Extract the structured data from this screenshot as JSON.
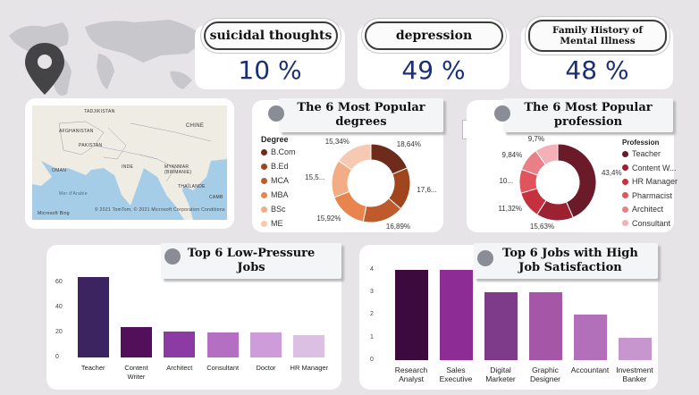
{
  "kpis": [
    {
      "label": "suicidal thoughts",
      "value": "10 %"
    },
    {
      "label": "depression",
      "value": "49 %"
    },
    {
      "label": "Family History of\nMental Illness",
      "value": "48 %"
    }
  ],
  "map": {
    "labels": {
      "tajikistan": "TADJIKISTAN",
      "afghanistan": "AFGHANISTAN",
      "pakistan": "PAKISTAN",
      "chine": "CHINE",
      "inde": "INDE",
      "oman": "OMAN",
      "myanmar": "MYANMAR\n(BIRMANIE)",
      "thailande": "THAÏLANDE",
      "mer": "Mer d'Arabie",
      "cambodge": "CAMB"
    },
    "attribution": "Microsoft Bing",
    "copyright": "© 2021 TomTom, © 2021 Microsoft Corporation  Conditions"
  },
  "degrees": {
    "title": "The 6 Most Popular degrees",
    "legend_title": "Degree",
    "items": [
      {
        "name": "B.Com",
        "pct": 18.64,
        "label": "18,64%",
        "color": "#6e2b1c"
      },
      {
        "name": "B.Ed",
        "pct": 17.6,
        "label": "17,6...",
        "color": "#a0451c"
      },
      {
        "name": "MCA",
        "pct": 16.89,
        "label": "16,89%",
        "color": "#bf5a2c"
      },
      {
        "name": "MBA",
        "pct": 15.92,
        "label": "15,92%",
        "color": "#e8854e"
      },
      {
        "name": "BSc",
        "pct": 15.5,
        "label": "15,5...",
        "color": "#f2ad86"
      },
      {
        "name": "ME",
        "pct": 15.34,
        "label": "15,34%",
        "color": "#f6c9b2"
      }
    ]
  },
  "profession": {
    "title": "The 6 Most Popular profession",
    "legend_title": "Profession",
    "items": [
      {
        "name": "Teacher",
        "pct": 43.4,
        "label": "43,4%",
        "color": "#6b1a2a"
      },
      {
        "name": "Content W...",
        "pct": 15.63,
        "label": "15,63%",
        "color": "#9c2233"
      },
      {
        "name": "HR Manager",
        "pct": 11.32,
        "label": "11,32%",
        "color": "#c6313f"
      },
      {
        "name": "Pharmacist",
        "pct": 10.0,
        "label": "10...",
        "color": "#e0545e"
      },
      {
        "name": "Architect",
        "pct": 9.84,
        "label": "9,84%",
        "color": "#ea7f88"
      },
      {
        "name": "Consultant",
        "pct": 9.7,
        "label": "9,7%",
        "color": "#f3b1b7"
      }
    ]
  },
  "toolbar": {
    "filter_icon": "filter-icon",
    "more_icon": "more-icon"
  },
  "chart_data": [
    {
      "type": "bar",
      "title": "Top 6 Low-Pressure Jobs",
      "categories": [
        "Teacher",
        "Content\nWriter",
        "Architect",
        "Consultant",
        "Doctor",
        "HR Manager"
      ],
      "values": [
        64,
        24,
        21,
        20,
        20,
        18
      ],
      "colors": [
        "#3c2460",
        "#520f5a",
        "#8c3aa4",
        "#b46fc2",
        "#ce9cd8",
        "#dcc0e3"
      ],
      "ylim": [
        0,
        70
      ],
      "yticks": [
        "0",
        "20",
        "40",
        "60"
      ],
      "ytick_values": [
        0,
        20,
        40,
        60
      ]
    },
    {
      "type": "bar",
      "title": "Top 6 Jobs with High Job Satisfaction",
      "categories": [
        "Research\nAnalyst",
        "Sales\nExecutive",
        "Digital\nMarketer",
        "Graphic\nDesigner",
        "Accountant",
        "Investment\nBanker"
      ],
      "values": [
        4,
        4,
        3,
        3,
        2,
        1
      ],
      "colors": [
        "#3d0a3e",
        "#8d2c94",
        "#7e3b8a",
        "#a656a7",
        "#b370ba",
        "#c896cf"
      ],
      "ylim": [
        0,
        4.3
      ],
      "yticks": [
        "0",
        "1",
        "2",
        "3",
        "4"
      ],
      "ytick_values": [
        0,
        1,
        2,
        3,
        4
      ]
    }
  ]
}
